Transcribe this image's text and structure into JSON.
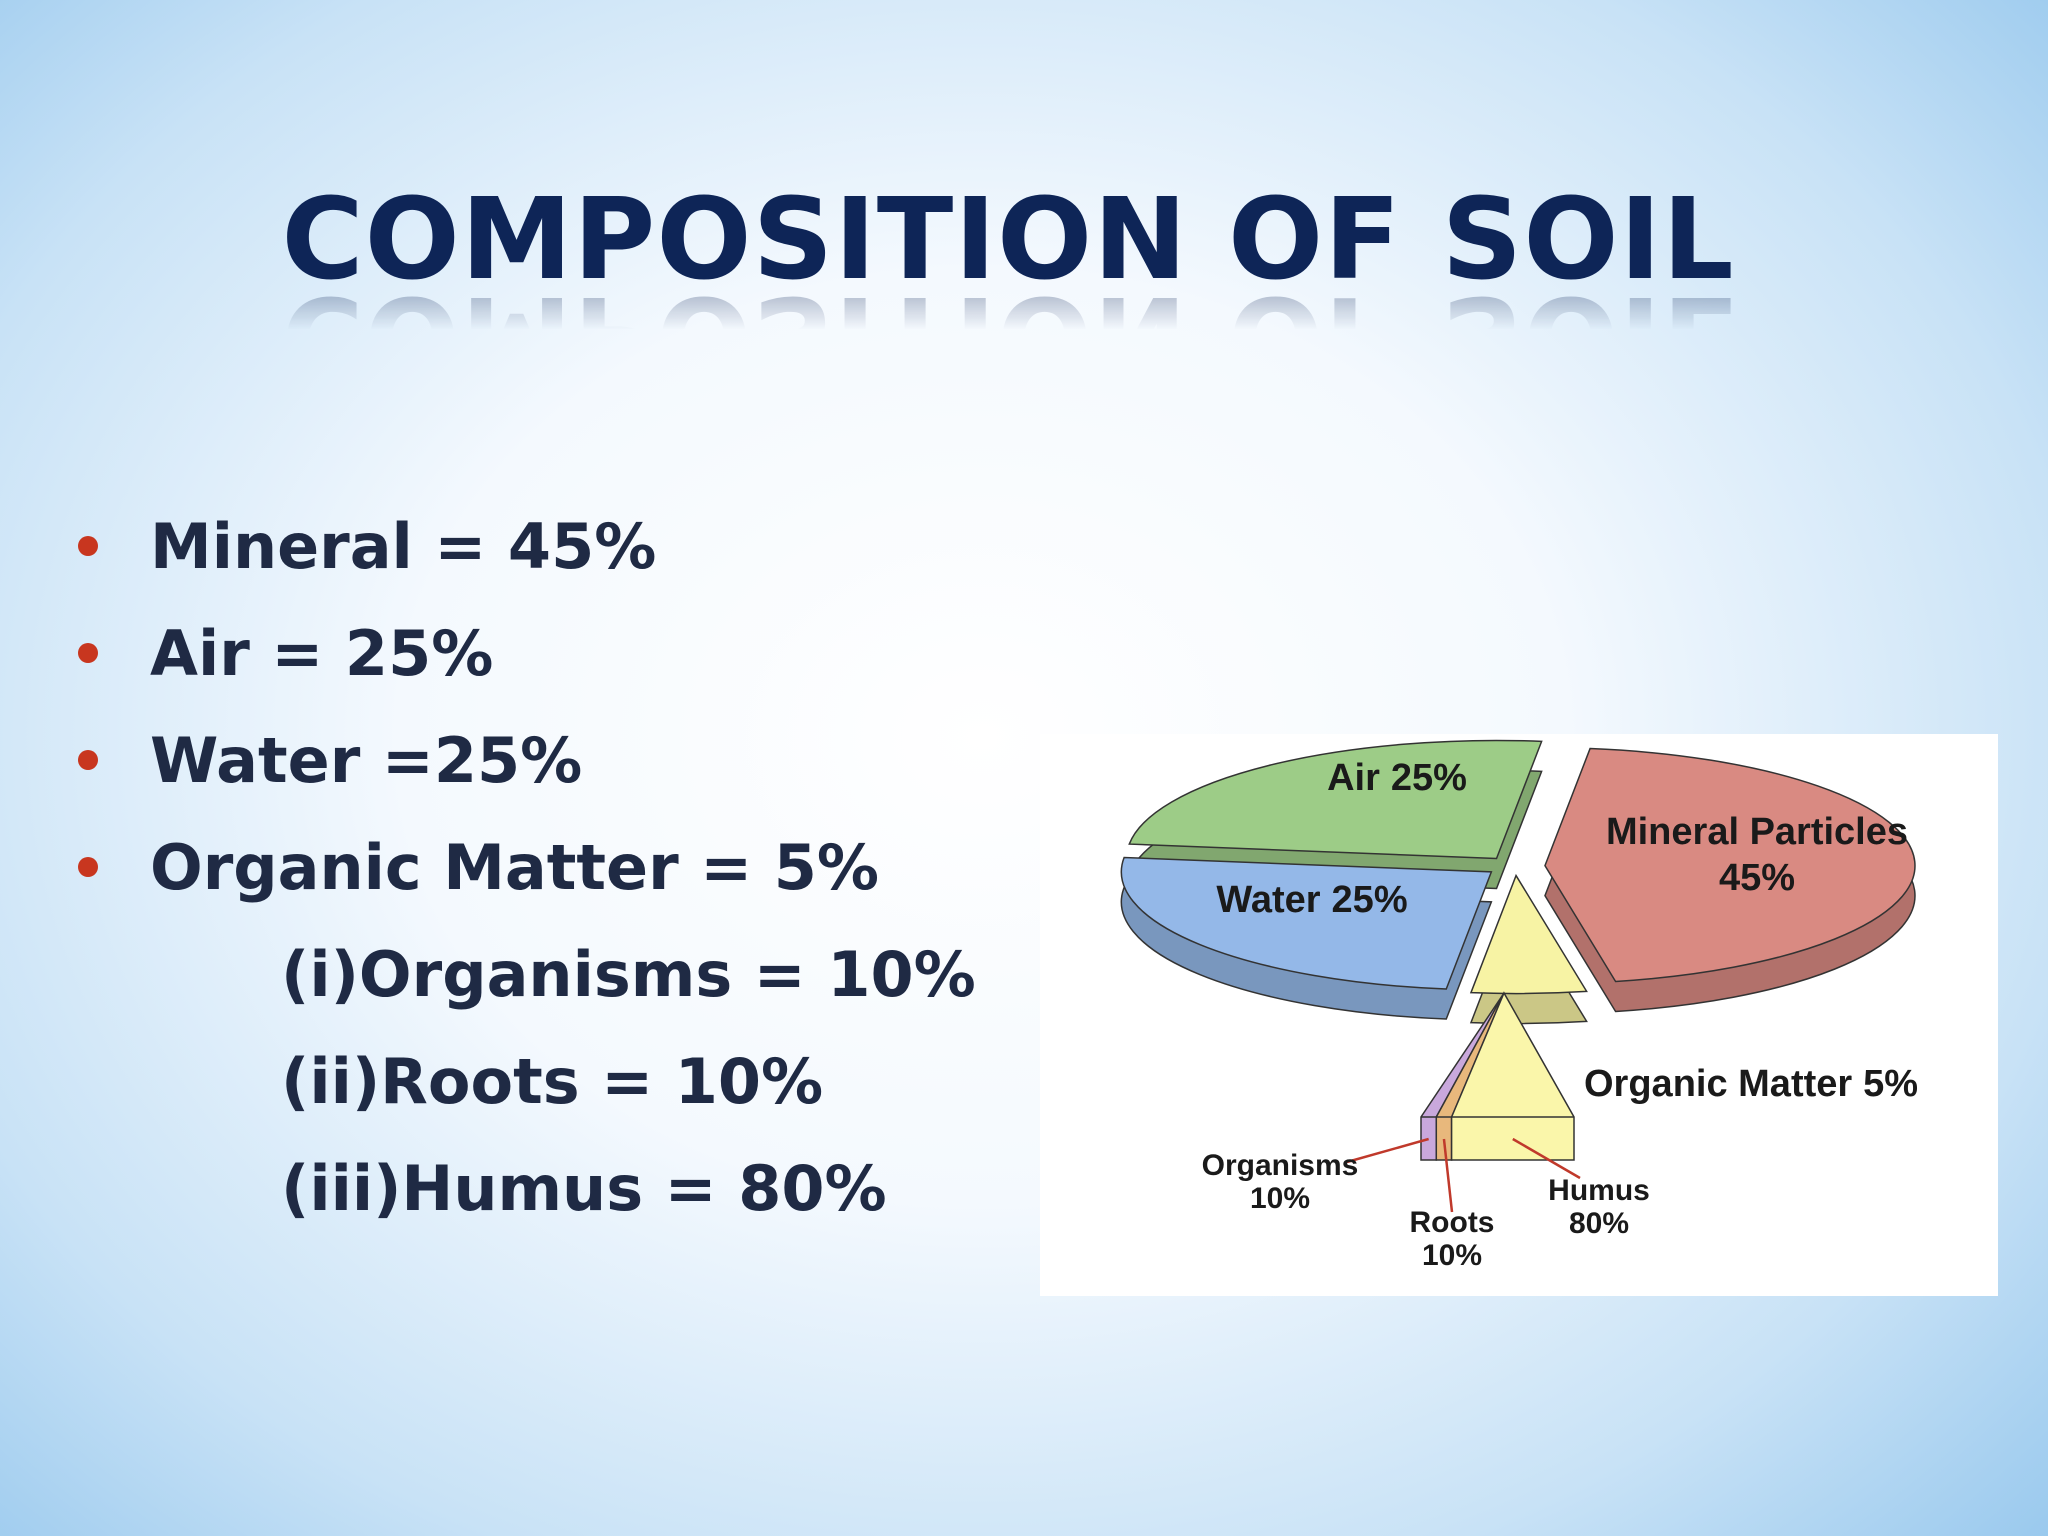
{
  "title": "COMPOSITION OF SOIL",
  "bullets": [
    "Mineral = 45%",
    "Air = 25%",
    "Water =25%",
    "Organic Matter = 5%"
  ],
  "sub_bullets": [
    "(i)Organisms = 10%",
    "(ii)Roots = 10%",
    "(iii)Humus = 80%"
  ],
  "chart_data": {
    "type": "pie",
    "categories": [
      "Air",
      "Mineral Particles",
      "Organic Matter",
      "Water"
    ],
    "values": [
      25,
      45,
      5,
      25
    ],
    "value_labels": [
      "25%",
      "45%",
      "5%",
      "25%"
    ],
    "colors": [
      "#9dcc87",
      "#d98a82",
      "#f7f3a4",
      "#94b8e8"
    ],
    "breakdown": {
      "categories": [
        "Organisms",
        "Roots",
        "Humus"
      ],
      "values": [
        10,
        10,
        80
      ],
      "value_labels": [
        "10%",
        "10%",
        "80%"
      ],
      "colors": [
        "#c9a8dc",
        "#e8b87c",
        "#faf6aa"
      ]
    }
  }
}
